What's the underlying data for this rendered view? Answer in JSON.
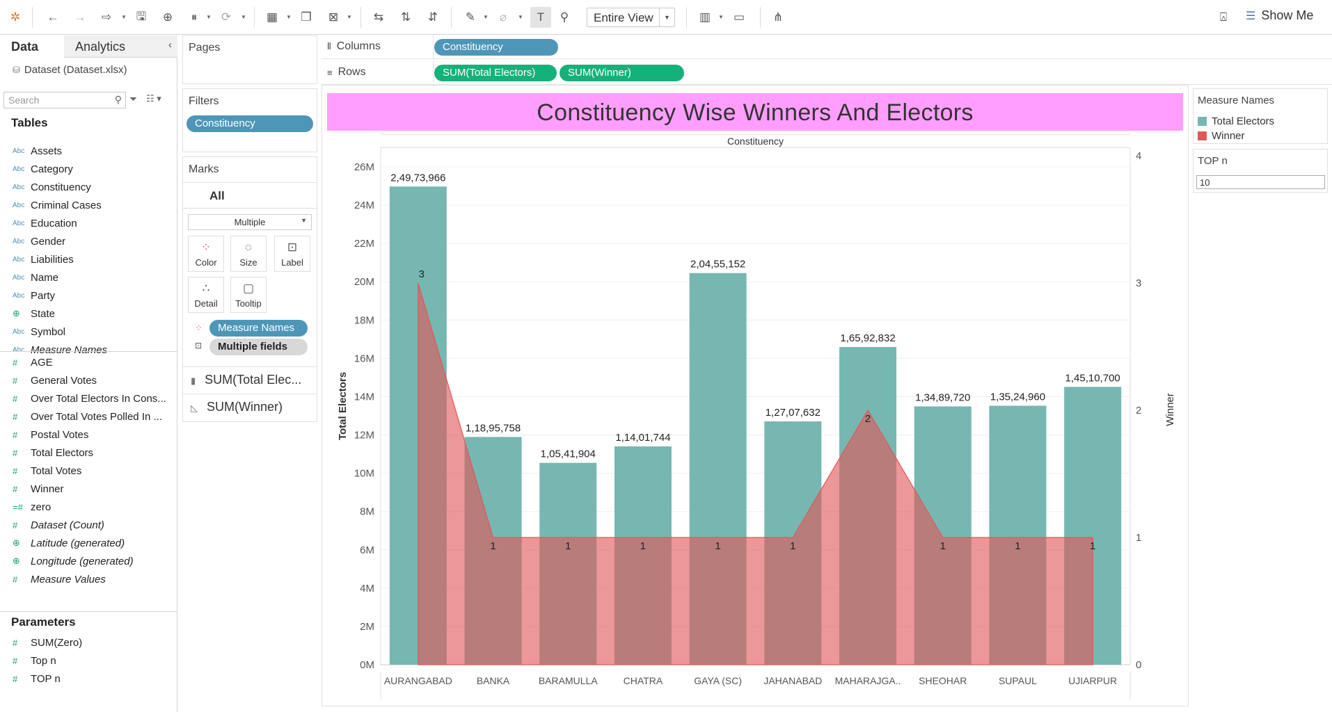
{
  "toolbar": {
    "view_mode": "Entire View",
    "show_me": "Show Me"
  },
  "data_pane": {
    "tab_data": "Data",
    "tab_analytics": "Analytics",
    "datasource": "Dataset (Dataset.xlsx)",
    "search_placeholder": "Search",
    "tables_heading": "Tables",
    "dimensions": [
      {
        "label": "Assets",
        "type": "Abc"
      },
      {
        "label": "Category",
        "type": "Abc"
      },
      {
        "label": "Constituency",
        "type": "Abc"
      },
      {
        "label": "Criminal Cases",
        "type": "Abc"
      },
      {
        "label": "Education",
        "type": "Abc"
      },
      {
        "label": "Gender",
        "type": "Abc"
      },
      {
        "label": "Liabilities",
        "type": "Abc"
      },
      {
        "label": "Name",
        "type": "Abc"
      },
      {
        "label": "Party",
        "type": "Abc"
      },
      {
        "label": "State",
        "type": "geo"
      },
      {
        "label": "Symbol",
        "type": "Abc"
      },
      {
        "label": "Measure Names",
        "type": "Abc"
      }
    ],
    "measures": [
      {
        "label": "AGE"
      },
      {
        "label": "General Votes"
      },
      {
        "label": "Over Total Electors  In Cons..."
      },
      {
        "label": "Over Total Votes Polled  In ..."
      },
      {
        "label": "Postal Votes"
      },
      {
        "label": "Total Electors"
      },
      {
        "label": "Total Votes"
      },
      {
        "label": "Winner"
      },
      {
        "label": "zero"
      },
      {
        "label": "Dataset (Count)"
      },
      {
        "label": "Latitude (generated)"
      },
      {
        "label": "Longitude (generated)"
      },
      {
        "label": "Measure Values"
      }
    ],
    "parameters_heading": "Parameters",
    "parameters": [
      {
        "label": "SUM(Zero)"
      },
      {
        "label": "Top n"
      },
      {
        "label": "TOP n"
      }
    ]
  },
  "pages": {
    "title": "Pages"
  },
  "filters": {
    "title": "Filters",
    "pill": "Constituency"
  },
  "marks": {
    "title": "Marks",
    "all": "All",
    "mark_type": "Multiple",
    "buttons": [
      "Color",
      "Size",
      "Label",
      "Detail",
      "Tooltip"
    ],
    "color_pill": "Measure Names",
    "label_pill": "Multiple fields",
    "rows": [
      "SUM(Total Elec...",
      "SUM(Winner)"
    ]
  },
  "shelves": {
    "columns_label": "Columns",
    "rows_label": "Rows",
    "columns_pill": "Constituency",
    "rows_pills": [
      "SUM(Total Electors)",
      "SUM(Winner)"
    ]
  },
  "legend": {
    "title": "Measure Names",
    "items": [
      {
        "label": "Total Electors",
        "color": "#76b7b2"
      },
      {
        "label": "Winner",
        "color": "#e15759"
      }
    ]
  },
  "topn": {
    "title": "TOP n",
    "value": "10"
  },
  "chart_data": {
    "type": "bar",
    "title": "Constituency Wise Winners And Electors",
    "column_header": "Constituency",
    "categories": [
      "AURANGABAD",
      "BANKA",
      "BARAMULLA",
      "CHATRA",
      "GAYA (SC)",
      "JAHANABAD",
      "MAHARAJGA..",
      "SHEOHAR",
      "SUPAUL",
      "UJIARPUR"
    ],
    "series": [
      {
        "name": "Total Electors",
        "mark": "bar",
        "axis": "left",
        "color": "#76b7b2",
        "values": [
          24973966,
          11895758,
          10541904,
          11401744,
          20455152,
          12707632,
          16592832,
          13489720,
          13524960,
          14510700
        ],
        "labels": [
          "2,49,73,966",
          "1,18,95,758",
          "1,05,41,904",
          "1,14,01,744",
          "2,04,55,152",
          "1,27,07,632",
          "1,65,92,832",
          "1,34,89,720",
          "1,35,24,960",
          "1,45,10,700"
        ]
      },
      {
        "name": "Winner",
        "mark": "area",
        "axis": "right",
        "color": "#e15759",
        "values": [
          3,
          1,
          1,
          1,
          1,
          1,
          2,
          1,
          1,
          1
        ]
      }
    ],
    "ylabel": "Total Electors",
    "y2label": "Winner",
    "ylim": [
      0,
      27000000
    ],
    "y2lim": [
      0,
      4
    ],
    "yticks": [
      0,
      2000000,
      4000000,
      6000000,
      8000000,
      10000000,
      12000000,
      14000000,
      16000000,
      18000000,
      20000000,
      22000000,
      24000000,
      26000000
    ],
    "yticklabels": [
      "0M",
      "2M",
      "4M",
      "6M",
      "8M",
      "10M",
      "12M",
      "14M",
      "16M",
      "18M",
      "20M",
      "22M",
      "24M",
      "26M"
    ],
    "y2ticks": [
      0,
      1,
      2,
      3,
      4
    ],
    "y2ticklabels": [
      "0",
      "1",
      "2",
      "3",
      "4"
    ],
    "grid": true
  }
}
